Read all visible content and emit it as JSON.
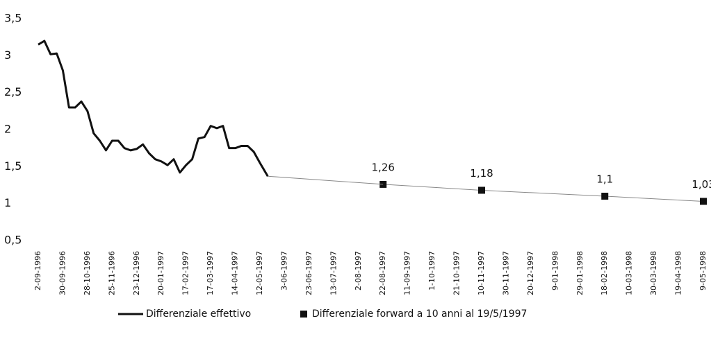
{
  "chart_data": {
    "type": "line",
    "categories": [
      "2-09-1996",
      "30-09-1996",
      "28-10-1996",
      "25-11-1996",
      "23-12-1996",
      "20-01-1997",
      "17-02-1997",
      "17-03-1997",
      "14-04-1997",
      "12-05-1997",
      "3-06-1997",
      "23-06-1997",
      "13-07-1997",
      "2-08-1997",
      "22-08-1997",
      "11-09-1997",
      "1-10-1997",
      "21-10-1997",
      "10-11-1997",
      "30-11-1997",
      "20-12-1997",
      "9-01-1998",
      "29-01-1998",
      "18-02-1998",
      "10-03-1998",
      "30-03-1998",
      "19-04-1998",
      "9-05-1998"
    ],
    "series": [
      {
        "name": "Differenziale effettivo",
        "color": "#111111",
        "marker": "none",
        "x": [
          "2-09-1996",
          "9-09-1996",
          "16-09-1996",
          "23-09-1996",
          "30-09-1996",
          "7-10-1996",
          "14-10-1996",
          "21-10-1996",
          "28-10-1996",
          "4-11-1996",
          "11-11-1996",
          "18-11-1996",
          "25-11-1996",
          "2-12-1996",
          "9-12-1996",
          "16-12-1996",
          "23-12-1996",
          "30-12-1996",
          "6-01-1997",
          "13-01-1997",
          "20-01-1997",
          "27-01-1997",
          "3-02-1997",
          "10-02-1997",
          "17-02-1997",
          "24-02-1997",
          "3-03-1997",
          "10-03-1997",
          "17-03-1997",
          "24-03-1997",
          "31-03-1997",
          "7-04-1997",
          "14-04-1997",
          "21-04-1997",
          "28-04-1997",
          "5-05-1997",
          "12-05-1997",
          "19-05-1997"
        ],
        "values": [
          3.15,
          3.2,
          3.02,
          3.03,
          2.8,
          2.3,
          2.3,
          2.38,
          2.25,
          1.95,
          1.85,
          1.72,
          1.85,
          1.85,
          1.75,
          1.72,
          1.74,
          1.8,
          1.68,
          1.6,
          1.57,
          1.52,
          1.6,
          1.42,
          1.52,
          1.6,
          1.88,
          1.9,
          2.05,
          2.02,
          2.05,
          1.75,
          1.75,
          1.78,
          1.78,
          1.7,
          1.55,
          1.37
        ]
      },
      {
        "name": "Differenziale forward a 10 anni al 19/5/1997",
        "color": "#111111",
        "marker": "square",
        "x": [
          "22-08-1997",
          "10-11-1997",
          "18-02-1998",
          "9-05-1998"
        ],
        "values": [
          1.26,
          1.18,
          1.1,
          1.03
        ],
        "value_labels": [
          "1,26",
          "1,18",
          "1,1",
          "1,03"
        ]
      }
    ],
    "ylim": [
      0.5,
      3.5
    ],
    "yticks": [
      {
        "value": 0.5,
        "label": "0,5"
      },
      1,
      {
        "value": 1.5,
        "label": "1,5"
      },
      2,
      {
        "value": 2.5,
        "label": "2,5"
      },
      3,
      {
        "value": 3.5,
        "label": "3,5"
      }
    ],
    "grid": false
  }
}
